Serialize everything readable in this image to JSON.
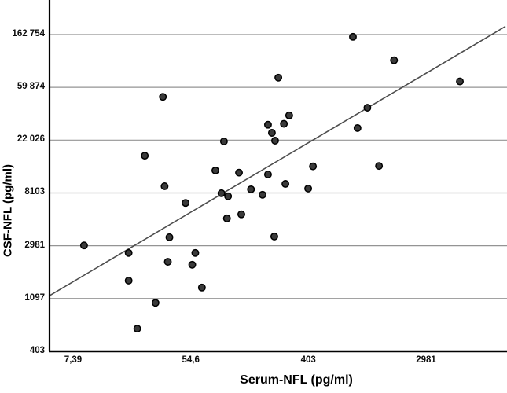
{
  "figure": {
    "x_axis": {
      "label": "Serum-NFL (pg/ml)",
      "tick_labels": [
        "7,39",
        "54,6",
        "403",
        "2981"
      ],
      "tick_values": [
        7.39,
        54.6,
        403,
        2981
      ],
      "scale": "log"
    },
    "y_axis": {
      "label": "CSF-NFL (pg/ml)",
      "tick_labels": [
        "403",
        "1097",
        "2981",
        "8103",
        "22 026",
        "59 874",
        "162 754"
      ],
      "tick_values": [
        403,
        1097,
        2981,
        8103,
        22026,
        59874,
        162754
      ],
      "scale": "log"
    }
  },
  "chart_data": {
    "type": "scatter",
    "title": "",
    "xlabel": "Serum-NFL (pg/ml)",
    "ylabel": "CSF-NFL (pg/ml)",
    "x_scale": "log",
    "y_scale": "log",
    "xlim": [
      5,
      12000
    ],
    "ylim": [
      403,
      250000
    ],
    "x_ticks": [
      7.39,
      54.6,
      403,
      2981
    ],
    "y_ticks": [
      403,
      1097,
      2981,
      8103,
      22026,
      59874,
      162754
    ],
    "grid": "horizontal-only",
    "legend": "none",
    "points_serum_csf": [
      [
        860,
        156000
      ],
      [
        1730,
        100000
      ],
      [
        242,
        72000
      ],
      [
        5300,
        67000
      ],
      [
        34,
        50000
      ],
      [
        291,
        35200
      ],
      [
        266,
        30000
      ],
      [
        203,
        29500
      ],
      [
        217,
        25300
      ],
      [
        229,
        21800
      ],
      [
        96,
        21500
      ],
      [
        1100,
        40700
      ],
      [
        930,
        27700
      ],
      [
        25,
        16400
      ],
      [
        83,
        12400
      ],
      [
        124,
        11900
      ],
      [
        203,
        11500
      ],
      [
        436,
        13400
      ],
      [
        1340,
        13500
      ],
      [
        35,
        9200
      ],
      [
        92,
        8060
      ],
      [
        103,
        7600
      ],
      [
        152,
        8670
      ],
      [
        185,
        7830
      ],
      [
        273,
        9620
      ],
      [
        402,
        8800
      ],
      [
        50,
        6700
      ],
      [
        101,
        5000
      ],
      [
        129,
        5400
      ],
      [
        38,
        3500
      ],
      [
        226,
        3550
      ],
      [
        8.9,
        3000
      ],
      [
        19,
        2600
      ],
      [
        59,
        2600
      ],
      [
        37,
        2200
      ],
      [
        56,
        2080
      ],
      [
        19,
        1540
      ],
      [
        66,
        1350
      ],
      [
        30,
        1010
      ],
      [
        22,
        620
      ]
    ],
    "fit_line": {
      "x1": 4.9,
      "y1": 1150,
      "x2": 11500,
      "y2": 190000
    },
    "colors": {
      "marker_fill": "#3a3a3a",
      "marker_stroke": "#000000",
      "fit_line": "#4d4d4d",
      "gridline": "#949494",
      "axis": "#000000",
      "background": "#ffffff"
    }
  }
}
